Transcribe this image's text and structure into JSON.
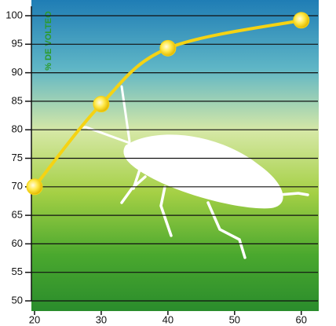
{
  "chart_data": {
    "type": "line",
    "y_label": "% DE VOLTEO",
    "x": [
      20,
      30,
      40,
      60
    ],
    "series": [
      {
        "color": "#f5d313",
        "values": [
          70,
          84.5,
          94.3,
          99.2
        ]
      }
    ],
    "xlim": [
      20,
      62.5
    ],
    "xticks": [
      20,
      30,
      40,
      50,
      60
    ],
    "ylim": [
      50,
      100
    ],
    "yticks": [
      50,
      55,
      60,
      65,
      70,
      75,
      80,
      85,
      90,
      95,
      100
    ],
    "grid": true
  }
}
